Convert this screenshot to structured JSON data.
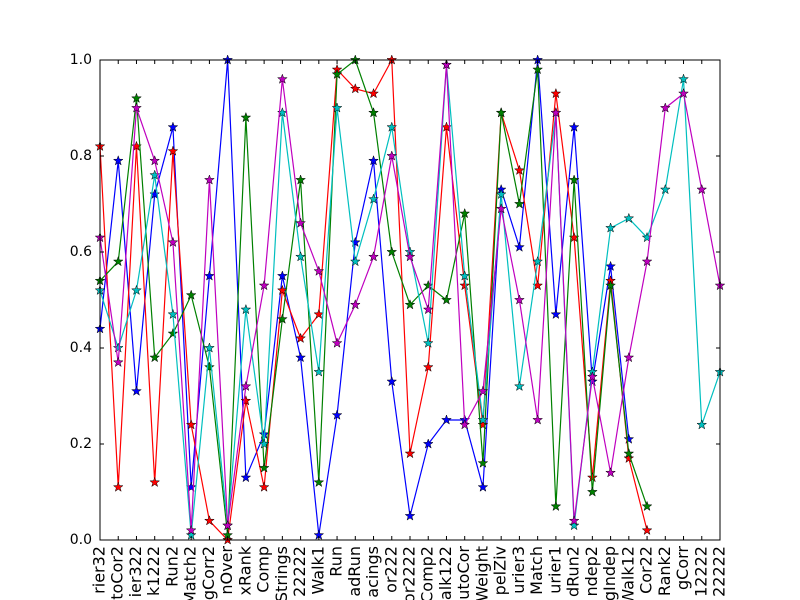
{
  "chart_data": {
    "type": "line",
    "categories": [
      "rier32",
      "toCor2",
      "ier322",
      "k1222",
      "Run2",
      "Match2",
      "gCorr2",
      "nOver",
      "xRank",
      "Comp",
      "Strings",
      "22222",
      "Walk1",
      "Run",
      "adRun",
      "acings",
      "or222",
      "or2222",
      "Comp2",
      "alk122",
      "utoCor",
      "Weight",
      "pelZiv",
      "urier3",
      "Match",
      "urier1",
      "dRun2",
      "ndep2",
      "gIndep",
      "Walk12",
      "Cor22",
      "Rank2",
      "gCorr",
      "12222",
      "22222"
    ],
    "series": [
      {
        "color": "#0000ff",
        "values": [
          0.44,
          0.79,
          0.31,
          0.72,
          0.86,
          0.11,
          0.55,
          1.0,
          0.13,
          0.22,
          0.55,
          0.38,
          0.01,
          0.26,
          0.62,
          0.79,
          0.33,
          0.05,
          0.2,
          0.25,
          0.25,
          0.11,
          0.73,
          0.61,
          1.0,
          0.47,
          0.86,
          0.33,
          0.57,
          0.21,
          null,
          null,
          null,
          null,
          null
        ]
      },
      {
        "color": "#ff0000",
        "values": [
          0.82,
          0.11,
          0.82,
          0.12,
          0.81,
          0.24,
          0.04,
          0.0,
          0.29,
          0.11,
          0.52,
          0.42,
          0.47,
          0.98,
          0.94,
          0.93,
          1.0,
          0.18,
          0.36,
          0.86,
          0.53,
          0.24,
          0.89,
          0.77,
          0.53,
          0.93,
          0.63,
          0.13,
          0.54,
          0.17,
          0.02,
          null,
          null,
          null,
          null
        ]
      },
      {
        "color": "#008000",
        "values": [
          0.54,
          0.58,
          0.92,
          0.38,
          0.43,
          0.51,
          0.36,
          0.01,
          0.88,
          0.15,
          0.46,
          0.75,
          0.12,
          0.97,
          1.0,
          0.89,
          0.6,
          0.49,
          0.53,
          0.5,
          0.68,
          0.16,
          0.89,
          0.7,
          0.98,
          0.07,
          0.75,
          0.1,
          0.53,
          0.18,
          0.07,
          null,
          null,
          null,
          null
        ]
      },
      {
        "color": "#00bfbf",
        "values": [
          0.52,
          0.4,
          0.52,
          0.76,
          0.47,
          0.01,
          0.4,
          0.03,
          0.48,
          0.2,
          0.89,
          0.59,
          0.35,
          0.9,
          0.58,
          0.71,
          0.86,
          0.6,
          0.41,
          0.99,
          0.55,
          0.25,
          0.72,
          0.32,
          0.58,
          0.89,
          0.03,
          0.35,
          0.65,
          0.67,
          0.63,
          0.73,
          0.96,
          0.24,
          0.35
        ]
      },
      {
        "color": "#bf00bf",
        "values": [
          0.63,
          0.37,
          0.9,
          0.79,
          0.62,
          0.02,
          0.75,
          0.03,
          0.32,
          0.53,
          0.96,
          0.66,
          0.56,
          0.41,
          0.49,
          0.59,
          0.8,
          0.59,
          0.48,
          0.99,
          0.24,
          0.31,
          0.69,
          0.5,
          0.25,
          0.89,
          0.04,
          0.34,
          0.14,
          0.38,
          0.58,
          0.9,
          0.93,
          0.73,
          0.53
        ]
      }
    ],
    "ylim": [
      0,
      1.0
    ],
    "yticks": [
      {
        "value": 0,
        "label": "0.0"
      },
      0.2,
      0.4,
      0.6,
      0.8,
      {
        "value": 1.0,
        "label": "1.0"
      }
    ],
    "marker": "star"
  }
}
